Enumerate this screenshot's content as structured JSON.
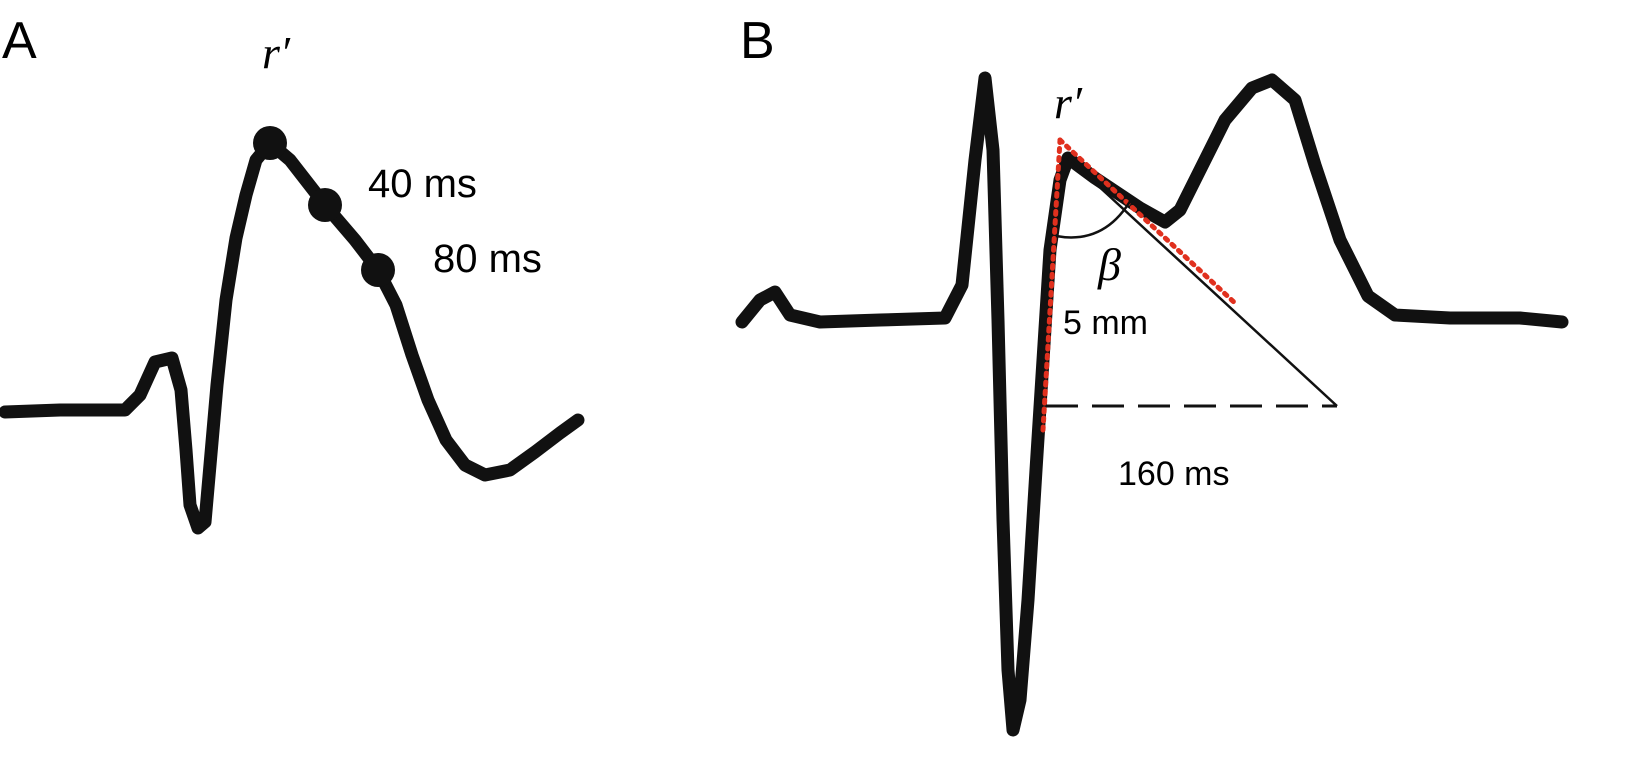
{
  "panel_a": {
    "label": "A",
    "peak_label": "r′",
    "mark_40": "40 ms",
    "mark_80": "80 ms"
  },
  "panel_b": {
    "label": "B",
    "peak_label": "r′",
    "angle_label": "β",
    "height_label": "5 mm",
    "base_label": "160 ms"
  },
  "colors": {
    "trace": "#111111",
    "tangent_dots": "#e0301e"
  }
}
